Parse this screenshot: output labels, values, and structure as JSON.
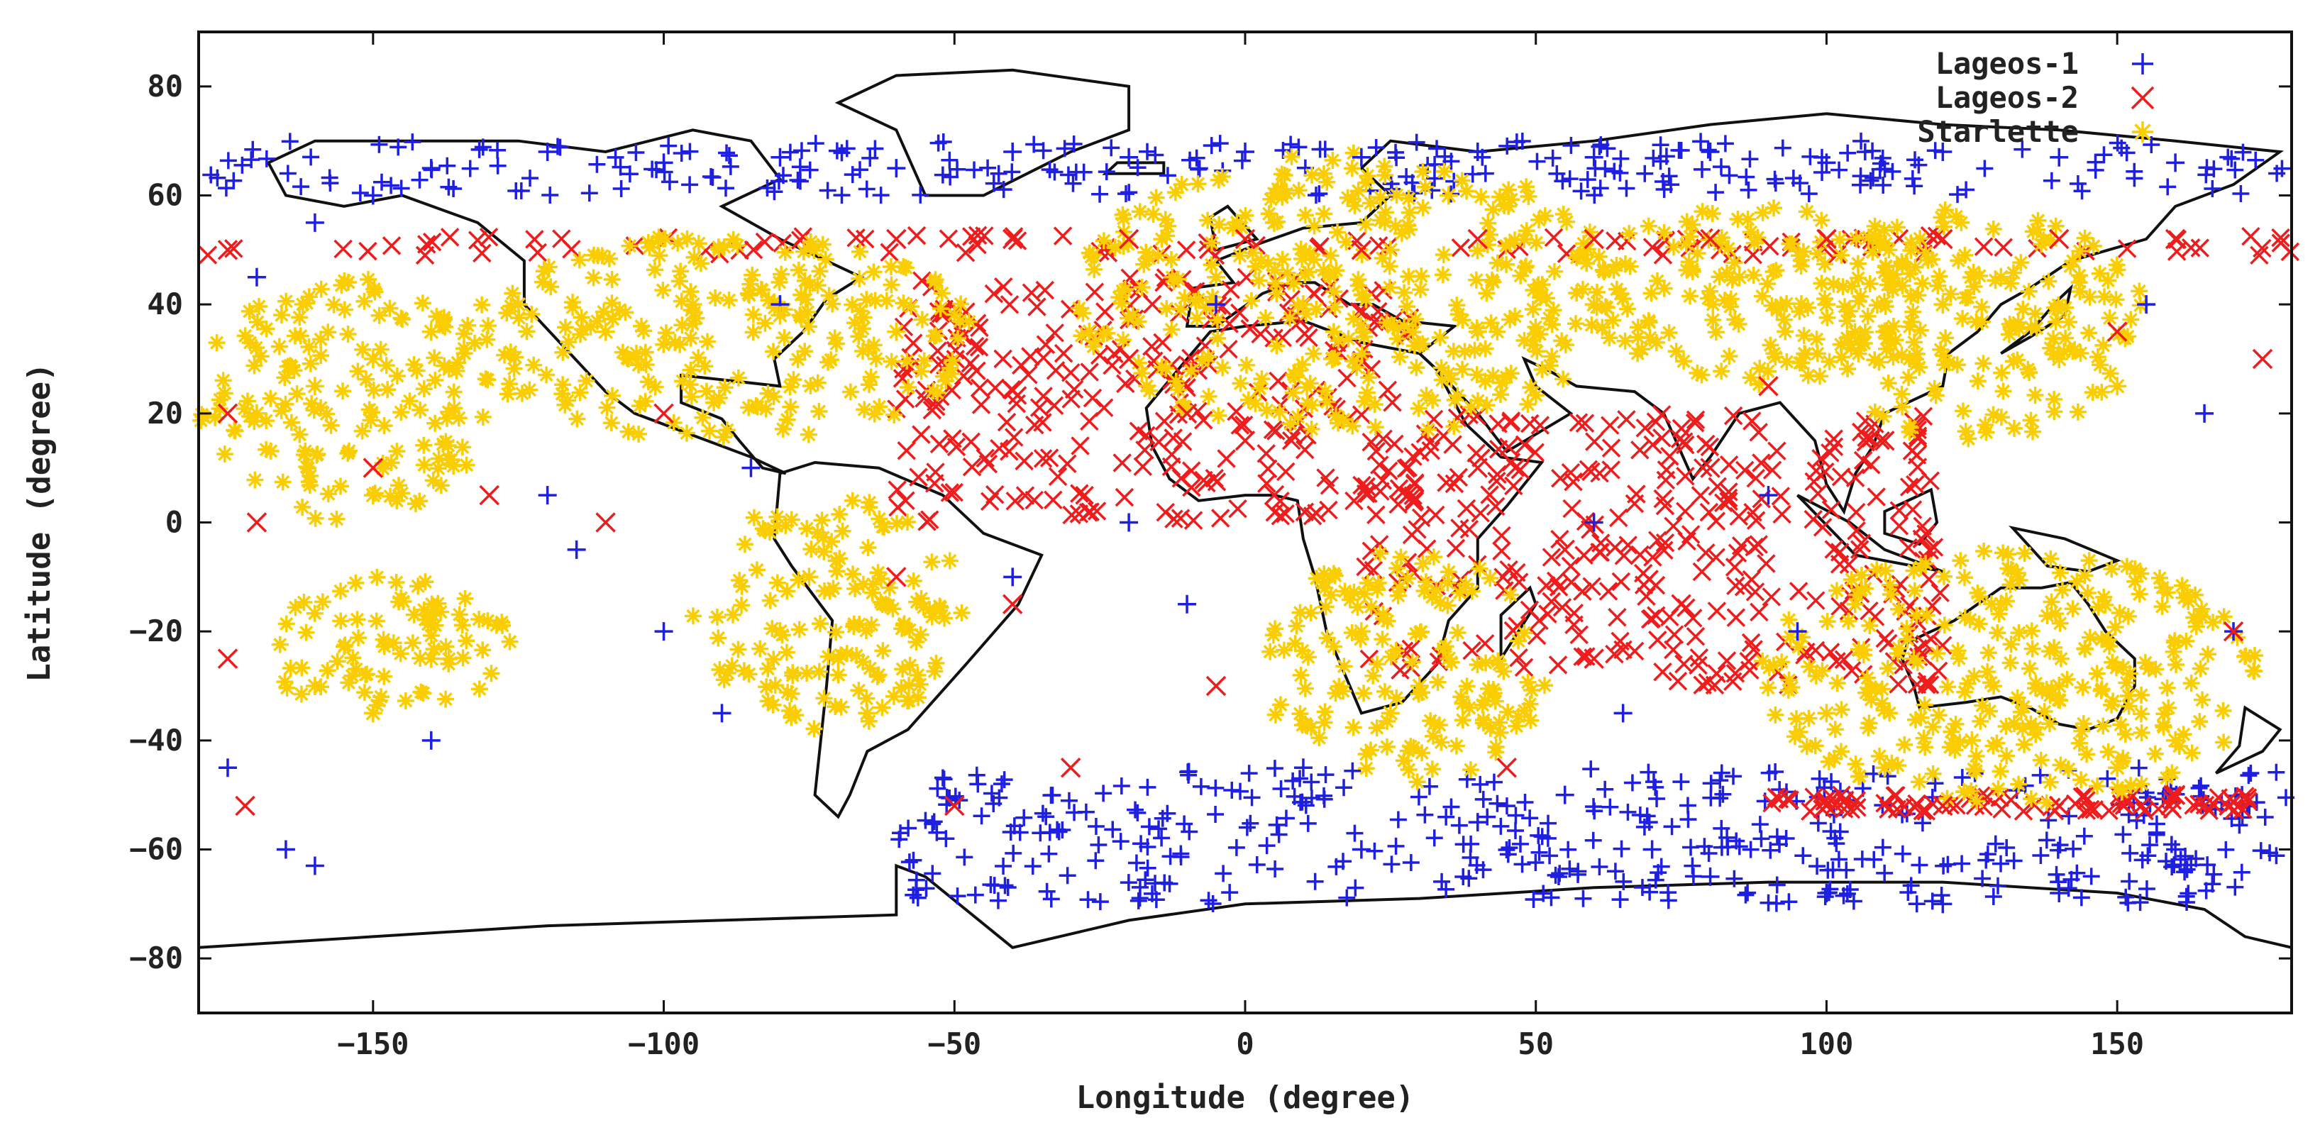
{
  "chart_data": {
    "type": "scatter",
    "xlabel": "Longitude (degree)",
    "ylabel": "Latitude (degree)",
    "xlim": [
      -180,
      180
    ],
    "ylim": [
      -90,
      90
    ],
    "xticks": [
      -150,
      -100,
      -50,
      0,
      50,
      100,
      150
    ],
    "yticks": [
      80,
      60,
      40,
      20,
      0,
      -20,
      -40,
      -60,
      -80
    ],
    "xtick_labels": [
      "−150",
      "−100",
      "−50",
      "0",
      "50",
      "100",
      "150"
    ],
    "ytick_labels": [
      "80",
      "60",
      "40",
      "20",
      "0",
      "−20",
      "−40",
      "−60",
      "−80"
    ],
    "grid": false,
    "legend_position": "top-right",
    "background": "world coastline map",
    "series": [
      {
        "name": "Lageos-1",
        "marker": "plus",
        "color": "#1f1fe0",
        "lat_range": [
          -70,
          70
        ],
        "points": [
          [
            -170,
            45
          ],
          [
            -160,
            55
          ],
          [
            -150,
            60
          ],
          [
            -140,
            65
          ],
          [
            -120,
            68
          ],
          [
            -100,
            66
          ],
          [
            -80,
            67
          ],
          [
            -60,
            65
          ],
          [
            -40,
            68
          ],
          [
            -20,
            67
          ],
          [
            0,
            68
          ],
          [
            20,
            67
          ],
          [
            40,
            68
          ],
          [
            60,
            67
          ],
          [
            80,
            68
          ],
          [
            100,
            66
          ],
          [
            120,
            68
          ],
          [
            140,
            67
          ],
          [
            160,
            66
          ],
          [
            -175,
            -45
          ],
          [
            -165,
            -60
          ],
          [
            -160,
            -63
          ],
          [
            -140,
            -40
          ],
          [
            -120,
            5
          ],
          [
            -100,
            -20
          ],
          [
            -90,
            -35
          ],
          [
            -85,
            10
          ],
          [
            -40,
            -10
          ],
          [
            -20,
            0
          ],
          [
            -10,
            -15
          ],
          [
            10,
            -45
          ],
          [
            20,
            -60
          ],
          [
            40,
            -55
          ],
          [
            55,
            -50
          ],
          [
            65,
            -35
          ],
          [
            70,
            -60
          ],
          [
            80,
            -65
          ],
          [
            95,
            -20
          ],
          [
            100,
            -68
          ],
          [
            120,
            -70
          ],
          [
            140,
            -68
          ],
          [
            160,
            -60
          ],
          [
            170,
            -20
          ],
          [
            165,
            20
          ],
          [
            155,
            40
          ],
          [
            60,
            0
          ],
          [
            90,
            5
          ],
          [
            -5,
            40
          ],
          [
            -115,
            -5
          ],
          [
            -80,
            40
          ]
        ]
      },
      {
        "name": "Lageos-2",
        "marker": "cross",
        "color": "#ee1c1c",
        "lat_range": [
          -53,
          53
        ],
        "points": [
          [
            -175,
            50
          ],
          [
            -175,
            20
          ],
          [
            -170,
            0
          ],
          [
            -175,
            -25
          ],
          [
            -172,
            -52
          ],
          [
            -150,
            10
          ],
          [
            -130,
            5
          ],
          [
            -110,
            0
          ],
          [
            -100,
            20
          ],
          [
            -60,
            -10
          ],
          [
            -50,
            -52
          ],
          [
            -40,
            -15
          ],
          [
            -30,
            -45
          ],
          [
            -20,
            30
          ],
          [
            -10,
            20
          ],
          [
            0,
            15
          ],
          [
            5,
            5
          ],
          [
            20,
            50
          ],
          [
            40,
            52
          ],
          [
            60,
            52
          ],
          [
            80,
            52
          ],
          [
            100,
            52
          ],
          [
            120,
            52
          ],
          [
            140,
            52
          ],
          [
            160,
            52
          ],
          [
            -60,
            52
          ],
          [
            -40,
            52
          ],
          [
            -20,
            52
          ],
          [
            0,
            52
          ],
          [
            40,
            10
          ],
          [
            55,
            -5
          ],
          [
            60,
            -25
          ],
          [
            75,
            -15
          ],
          [
            80,
            10
          ],
          [
            90,
            25
          ],
          [
            110,
            15
          ],
          [
            120,
            -52
          ],
          [
            140,
            -52
          ],
          [
            160,
            -50
          ],
          [
            170,
            -20
          ],
          [
            175,
            30
          ],
          [
            150,
            35
          ],
          [
            100,
            -52
          ],
          [
            45,
            -45
          ],
          [
            -5,
            -30
          ]
        ]
      },
      {
        "name": "Starlette",
        "marker": "star",
        "color": "#f9cd00",
        "lat_range": [
          -53,
          72
        ],
        "points": [
          [
            -170,
            20
          ],
          [
            -160,
            25
          ],
          [
            -150,
            30
          ],
          [
            -140,
            35
          ],
          [
            -125,
            40
          ],
          [
            -110,
            35
          ],
          [
            -95,
            40
          ],
          [
            -80,
            38
          ],
          [
            -60,
            35
          ],
          [
            -150,
            5
          ],
          [
            -160,
            -30
          ],
          [
            -150,
            -35
          ],
          [
            -140,
            -25
          ],
          [
            -75,
            -10
          ],
          [
            -70,
            -25
          ],
          [
            -65,
            -35
          ],
          [
            -80,
            -20
          ],
          [
            -5,
            45
          ],
          [
            5,
            55
          ],
          [
            10,
            40
          ],
          [
            15,
            30
          ],
          [
            25,
            50
          ],
          [
            35,
            60
          ],
          [
            40,
            35
          ],
          [
            60,
            40
          ],
          [
            85,
            45
          ],
          [
            100,
            40
          ],
          [
            110,
            35
          ],
          [
            120,
            40
          ],
          [
            130,
            45
          ],
          [
            140,
            30
          ],
          [
            150,
            25
          ],
          [
            20,
            -20
          ],
          [
            25,
            -35
          ],
          [
            30,
            -30
          ],
          [
            35,
            -25
          ],
          [
            100,
            -35
          ],
          [
            115,
            -25
          ],
          [
            125,
            -40
          ],
          [
            140,
            -30
          ],
          [
            150,
            -45
          ],
          [
            130,
            -15
          ],
          [
            110,
            -45
          ],
          [
            160,
            -40
          ]
        ]
      }
    ],
    "clusters": [
      {
        "series": "Starlette",
        "lon": [
          -135,
          -45
        ],
        "lat": [
          15,
          53
        ]
      },
      {
        "series": "Starlette",
        "lon": [
          -180,
          -130
        ],
        "lat": [
          0,
          45
        ]
      },
      {
        "series": "Starlette",
        "lon": [
          -170,
          -125
        ],
        "lat": [
          -35,
          -10
        ]
      },
      {
        "series": "Starlette",
        "lon": [
          -95,
          -48
        ],
        "lat": [
          -38,
          5
        ]
      },
      {
        "series": "Starlette",
        "lon": [
          -30,
          65
        ],
        "lat": [
          15,
          68
        ]
      },
      {
        "series": "Starlette",
        "lon": [
          60,
          120
        ],
        "lat": [
          25,
          60
        ]
      },
      {
        "series": "Starlette",
        "lon": [
          95,
          155
        ],
        "lat": [
          15,
          58
        ]
      },
      {
        "series": "Starlette",
        "lon": [
          3,
          52
        ],
        "lat": [
          -48,
          -5
        ]
      },
      {
        "series": "Starlette",
        "lon": [
          88,
          175
        ],
        "lat": [
          -52,
          -5
        ]
      },
      {
        "series": "Lageos-2",
        "lon": [
          -180,
          180
        ],
        "lat": [
          49,
          53
        ]
      },
      {
        "series": "Lageos-2",
        "lon": [
          88,
          175
        ],
        "lat": [
          -53,
          -50
        ]
      },
      {
        "series": "Lageos-2",
        "lon": [
          -60,
          30
        ],
        "lat": [
          0,
          45
        ]
      },
      {
        "series": "Lageos-2",
        "lon": [
          20,
          120
        ],
        "lat": [
          -30,
          20
        ]
      },
      {
        "series": "Lageos-1",
        "lon": [
          -180,
          180
        ],
        "lat": [
          60,
          70
        ]
      },
      {
        "series": "Lageos-1",
        "lon": [
          -60,
          180
        ],
        "lat": [
          -70,
          -45
        ]
      }
    ]
  }
}
